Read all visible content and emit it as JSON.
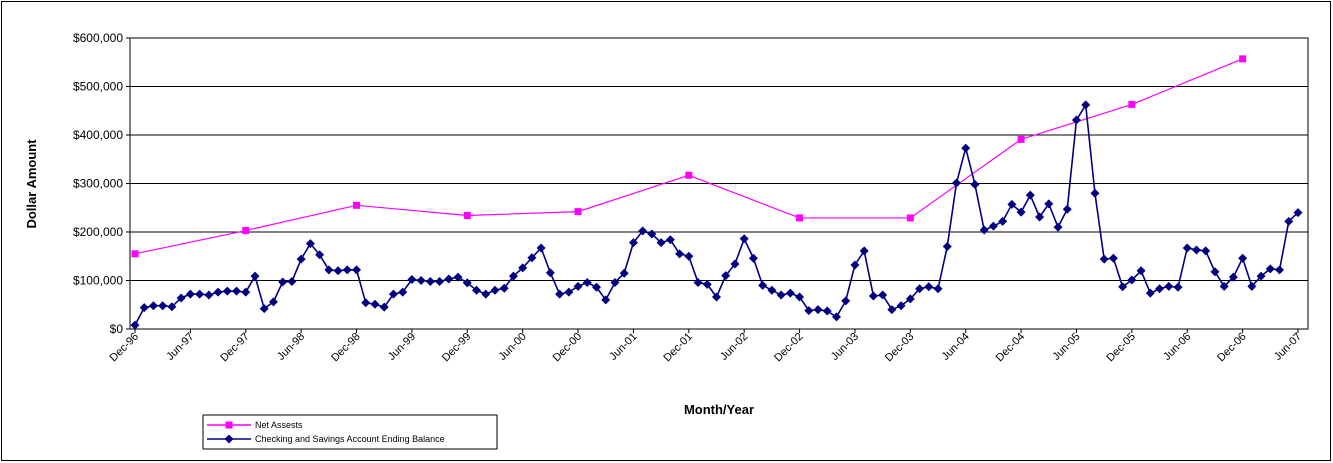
{
  "chart_data": {
    "type": "line",
    "x_label": "Month/Year",
    "y_label": "Dollar Amount",
    "categories": [
      "Dec-96",
      null,
      null,
      null,
      null,
      null,
      "Jun-97",
      null,
      null,
      null,
      null,
      null,
      "Dec-97",
      null,
      null,
      null,
      null,
      null,
      "Jun-98",
      null,
      null,
      null,
      null,
      null,
      "Dec-98",
      null,
      null,
      null,
      null,
      null,
      "Jun-99",
      null,
      null,
      null,
      null,
      null,
      "Dec-99",
      null,
      null,
      null,
      null,
      null,
      "Jun-00",
      null,
      null,
      null,
      null,
      null,
      "Dec-00",
      null,
      null,
      null,
      null,
      null,
      "Jun-01",
      null,
      null,
      null,
      null,
      null,
      "Dec-01",
      null,
      null,
      null,
      null,
      null,
      "Jun-02",
      null,
      null,
      null,
      null,
      null,
      "Dec-02",
      null,
      null,
      null,
      null,
      null,
      "Jun-03",
      null,
      null,
      null,
      null,
      null,
      "Dec-03",
      null,
      null,
      null,
      null,
      null,
      "Jun-04",
      null,
      null,
      null,
      null,
      null,
      "Dec-04",
      null,
      null,
      null,
      null,
      null,
      "Jun-05",
      null,
      null,
      null,
      null,
      null,
      "Dec-05",
      null,
      null,
      null,
      null,
      null,
      "Jun-06",
      null,
      null,
      null,
      null,
      null,
      "Dec-06",
      null,
      null,
      null,
      null,
      null,
      "Jun-07"
    ],
    "series": [
      {
        "name": "Net Assests",
        "color": "#ff00ff",
        "marker": "square",
        "span_gaps": true,
        "values": [
          155000,
          null,
          null,
          null,
          null,
          null,
          null,
          null,
          null,
          null,
          null,
          null,
          203000,
          null,
          null,
          null,
          null,
          null,
          null,
          null,
          null,
          null,
          null,
          null,
          255000,
          null,
          null,
          null,
          null,
          null,
          null,
          null,
          null,
          null,
          null,
          null,
          234000,
          null,
          null,
          null,
          null,
          null,
          null,
          null,
          null,
          null,
          null,
          null,
          242000,
          null,
          null,
          null,
          null,
          null,
          null,
          null,
          null,
          null,
          null,
          null,
          317000,
          null,
          null,
          null,
          null,
          null,
          null,
          null,
          null,
          null,
          null,
          null,
          229000,
          null,
          null,
          null,
          null,
          null,
          null,
          null,
          null,
          null,
          null,
          null,
          229000,
          null,
          null,
          null,
          null,
          null,
          null,
          null,
          null,
          null,
          null,
          null,
          391000,
          null,
          null,
          null,
          null,
          null,
          null,
          null,
          null,
          null,
          null,
          null,
          463000,
          null,
          null,
          null,
          null,
          null,
          null,
          null,
          null,
          null,
          null,
          null,
          557000,
          null,
          null,
          null,
          null,
          null,
          null
        ]
      },
      {
        "name": "Checking and Savings Account Ending Balance",
        "color": "#000080",
        "marker": "diamond",
        "values": [
          8000,
          44000,
          48000,
          48000,
          46000,
          64000,
          72000,
          72000,
          70000,
          76000,
          78000,
          78000,
          76000,
          109000,
          42000,
          56000,
          97000,
          98000,
          144000,
          176000,
          153000,
          122000,
          120000,
          122000,
          122000,
          54000,
          51000,
          45000,
          72000,
          76000,
          102000,
          100000,
          98000,
          98000,
          103000,
          107000,
          95000,
          80000,
          72000,
          80000,
          84000,
          109000,
          126000,
          147000,
          167000,
          116000,
          72000,
          76000,
          88000,
          96000,
          86000,
          60000,
          96000,
          115000,
          178000,
          202000,
          196000,
          178000,
          184000,
          155000,
          150000,
          96000,
          92000,
          66000,
          110000,
          134000,
          186000,
          146000,
          90000,
          80000,
          70000,
          74000,
          66000,
          38000,
          40000,
          37000,
          25000,
          58000,
          132000,
          161000,
          68000,
          70000,
          40000,
          48000,
          62000,
          83000,
          87000,
          83000,
          170000,
          301000,
          373000,
          298000,
          204000,
          212000,
          222000,
          257000,
          241000,
          276000,
          231000,
          258000,
          210000,
          247000,
          431000,
          462000,
          280000,
          144000,
          146000,
          87000,
          101000,
          120000,
          74000,
          83000,
          88000,
          86000,
          167000,
          163000,
          161000,
          118000,
          88000,
          107000,
          146000,
          88000,
          109000,
          124000,
          122000,
          222000,
          240000
        ]
      }
    ],
    "ylim": [
      0,
      600000
    ],
    "yticks": [
      {
        "value": 0,
        "label": "$0"
      },
      {
        "value": 100000,
        "label": "$100,000"
      },
      {
        "value": 200000,
        "label": "$200,000"
      },
      {
        "value": 300000,
        "label": "$300,000"
      },
      {
        "value": 400000,
        "label": "$400,000"
      },
      {
        "value": 500000,
        "label": "$500,000"
      },
      {
        "value": 600000,
        "label": "$600,000"
      }
    ],
    "grid": true,
    "legend": "bottom-left"
  }
}
